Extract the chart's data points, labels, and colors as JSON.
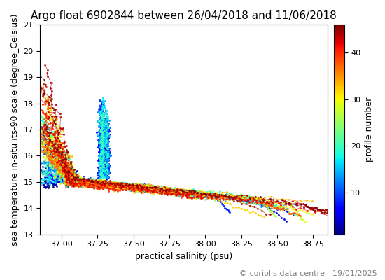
{
  "title": "Argo float 6902844 between 26/04/2018 and 11/06/2018",
  "xlabel": "practical salinity (psu)",
  "ylabel": "sea temperature in-situ its-90 scale (degree_Celsius)",
  "colorbar_label": "profile number",
  "colorbar_ticks": [
    10,
    20,
    30,
    40
  ],
  "xlim": [
    36.85,
    38.85
  ],
  "ylim": [
    13.0,
    21.0
  ],
  "xticks": [
    37.0,
    37.25,
    37.5,
    37.75,
    38.0,
    38.25,
    38.5,
    38.75
  ],
  "yticks": [
    13,
    14,
    15,
    16,
    17,
    18,
    19,
    20,
    21
  ],
  "cmap": "jet",
  "vmin": 1,
  "vmax": 46,
  "footer_text": "© coriolis data centre - 19/01/2025",
  "title_fontsize": 11,
  "axis_label_fontsize": 9,
  "colorbar_label_fontsize": 9,
  "footer_fontsize": 8
}
